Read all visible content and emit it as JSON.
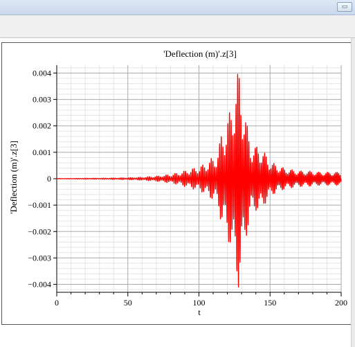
{
  "window": {
    "restore_glyph": "▭"
  },
  "chart_data": {
    "type": "line",
    "title": "'Deflection (m)'.z[3]",
    "xlabel": "t",
    "ylabel": "'Deflection (m)'.z[3]",
    "xlim": [
      0,
      200
    ],
    "ylim": [
      -0.0043,
      0.0043
    ],
    "x_ticks": [
      0,
      50,
      100,
      150,
      200
    ],
    "x_tick_labels": [
      "0",
      "50",
      "100",
      "150",
      "200"
    ],
    "y_ticks": [
      0.004,
      0.003,
      0.002,
      0.001,
      0,
      -0.001,
      -0.002,
      -0.003,
      -0.004
    ],
    "y_tick_labels": [
      "0.004",
      "0.003",
      "0.002",
      "0.001",
      "0",
      "−0.001",
      "−0.002",
      "−0.003",
      "−0.004"
    ],
    "grid": true,
    "line_color": "#ff0000",
    "series": [
      {
        "x": [
          0,
          10,
          20,
          30,
          40,
          50,
          55,
          60,
          65,
          70,
          75,
          80,
          85,
          90,
          95,
          100,
          105,
          108,
          110,
          112,
          114,
          116,
          118,
          120,
          122,
          124,
          126,
          127,
          128,
          129,
          130,
          132,
          134,
          136,
          138,
          140,
          142,
          144,
          146,
          148,
          150,
          152,
          154,
          156,
          158,
          160,
          165,
          170,
          175,
          180,
          185,
          190,
          195,
          200
        ],
        "amplitude": [
          1e-05,
          1e-05,
          2e-05,
          2e-05,
          3e-05,
          4e-05,
          5e-05,
          6e-05,
          8e-05,
          0.0001,
          0.00013,
          0.00017,
          0.00022,
          0.0003,
          0.00038,
          0.00045,
          0.0006,
          0.00075,
          0.0008,
          0.0009,
          0.0012,
          0.0018,
          0.002,
          0.0023,
          0.0026,
          0.0034,
          0.0038,
          0.004,
          0.0042,
          0.004,
          0.0036,
          0.0028,
          0.002,
          0.0015,
          0.0013,
          0.0012,
          0.00135,
          0.0012,
          0.001,
          0.00085,
          0.0007,
          0.0006,
          0.00055,
          0.0005,
          0.00045,
          0.0004,
          0.00035,
          0.0003,
          0.0003,
          0.00028,
          0.00025,
          0.00025,
          0.00025,
          0.00025
        ]
      }
    ]
  }
}
